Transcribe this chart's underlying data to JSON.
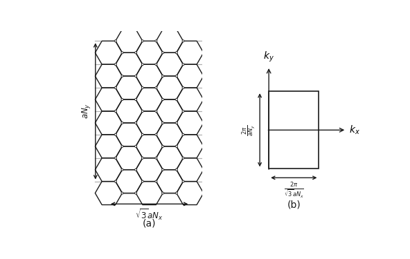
{
  "background_color": "#ffffff",
  "line_color": "#1a1a1a",
  "gray_line_color": "#b0b0b0",
  "dot_color": "#ffffff",
  "dot_edge_color": "#1a1a1a",
  "panel_a": {
    "Nx": 5,
    "Ny": 6,
    "r_hex": 0.28,
    "label": "(a)",
    "dim_label_x": "$\\sqrt{3}aN_x$",
    "dim_label_y": "$aN_y$"
  },
  "panel_b": {
    "bw": 1.0,
    "bh": 1.55,
    "label": "(b)",
    "label_kx": "$k_x$",
    "label_ky": "$k_y$",
    "dim_label_x": "$\\frac{2\\pi}{\\sqrt{3}aN_x}$",
    "dim_label_y": "$\\frac{2\\pi}{aN_y}$"
  }
}
